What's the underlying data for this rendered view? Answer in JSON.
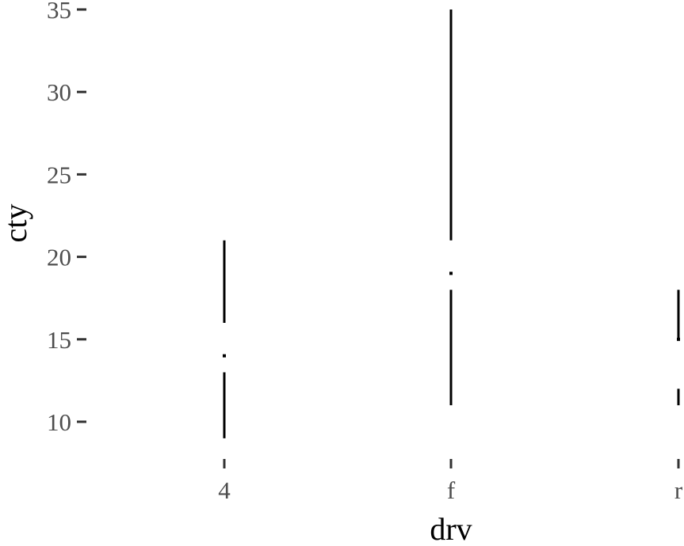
{
  "chart_data": {
    "type": "tufte-boxplot",
    "xlabel": "drv",
    "ylabel": "cty",
    "categories": [
      "4",
      "f",
      "r"
    ],
    "ylim": [
      7.5,
      35
    ],
    "yticks": [
      10,
      15,
      20,
      25,
      30,
      35
    ],
    "ytick_labels": [
      "10",
      "15",
      "20",
      "25",
      "30",
      "35"
    ],
    "grid": false,
    "series": [
      {
        "category": "4",
        "min": 9,
        "q1": 13,
        "median": 14,
        "q3": 16,
        "max": 21
      },
      {
        "category": "f",
        "min": 11,
        "q1": 18,
        "median": 19,
        "q3": 21,
        "max": 35
      },
      {
        "category": "r",
        "min": 11,
        "q1": 12,
        "median": 15,
        "q3": 15,
        "max": 18
      }
    ]
  }
}
